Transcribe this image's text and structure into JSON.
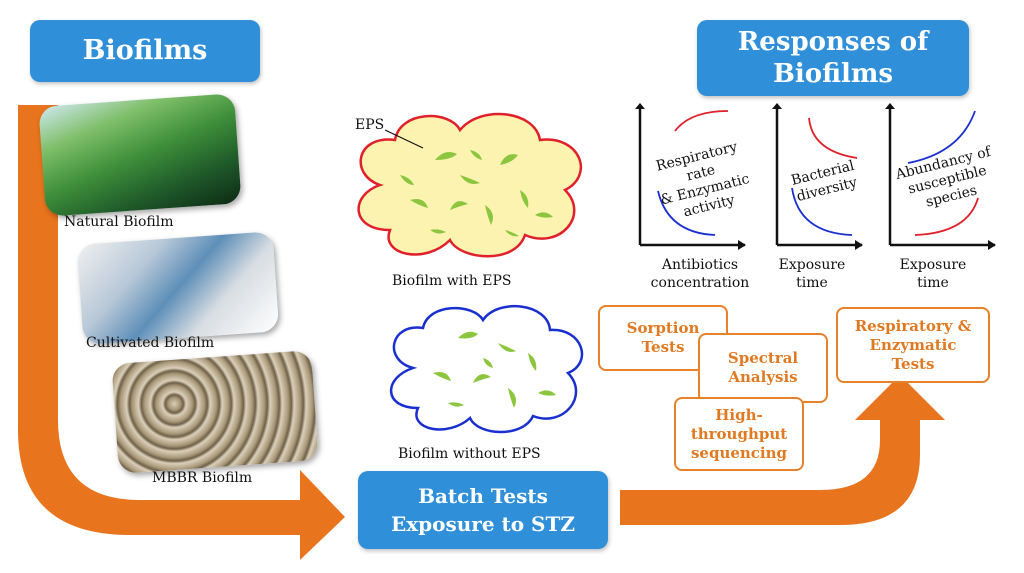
{
  "header": {
    "biofilms_title": "Biofilms",
    "responses_title_line1": "Responses of",
    "responses_title_line2": "Biofilms"
  },
  "samples": {
    "natural": "Natural Biofilm",
    "cultivated": "Cultivated Biofilm",
    "mbbr": "MBBR Biofilm"
  },
  "center": {
    "eps_label": "EPS",
    "with_eps": "Biofilm with EPS",
    "without_eps": "Biofilm without EPS",
    "batch_line1": "Batch Tests",
    "batch_line2": "Exposure to STZ"
  },
  "graphs": [
    {
      "curve_labels": [
        "Respiratory rate",
        "& Enzymatic",
        "activity"
      ],
      "axis_lines": [
        "Antibiotics",
        "concentration"
      ]
    },
    {
      "curve_labels": [
        "Bacterial",
        "diversity"
      ],
      "axis_lines": [
        "Exposure",
        "time"
      ]
    },
    {
      "curve_labels": [
        "Abundancy of",
        "susceptible",
        "species"
      ],
      "axis_lines": [
        "Exposure",
        "time"
      ]
    }
  ],
  "tests": {
    "sorption": [
      "Sorption",
      "Tests"
    ],
    "spectral": [
      "Spectral",
      "Analysis"
    ],
    "sequencing": [
      "High-",
      "throughput",
      "sequencing"
    ],
    "respiratory": [
      "Respiratory &",
      "Enzymatic",
      "Tests"
    ]
  },
  "colors": {
    "title_box": "#2f8fd8",
    "arrow": "#e8741e",
    "test_border": "#e8822a",
    "eps_fill": "#fdf3b0",
    "eps_outline": "#e0202a",
    "no_eps_outline": "#1a2fd0",
    "bacteria": "#8cc63f",
    "curve_red": "#e0202a",
    "curve_blue": "#1a2fd0"
  }
}
